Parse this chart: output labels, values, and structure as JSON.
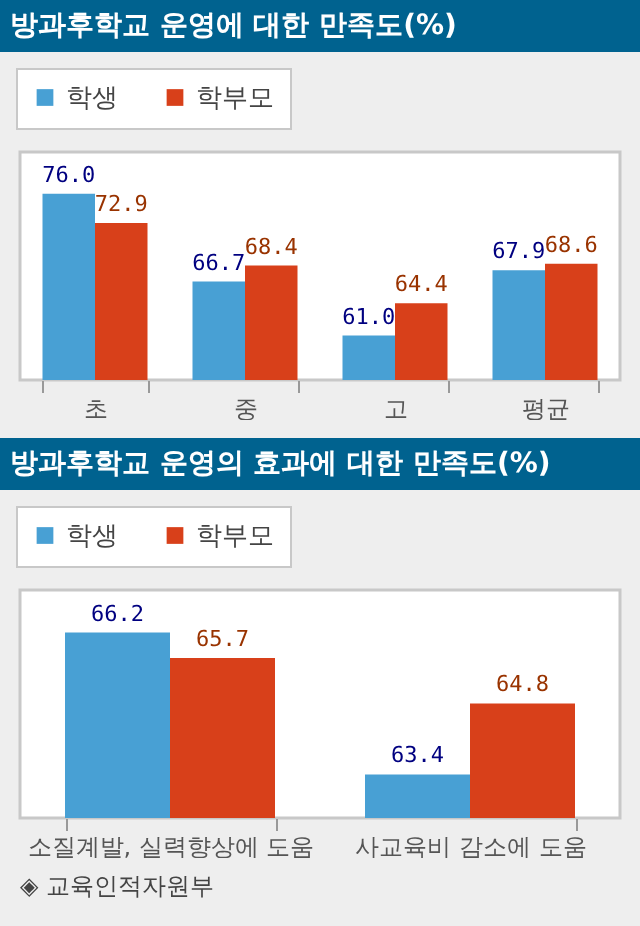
{
  "chart_data": [
    {
      "type": "bar",
      "title": "방과후학교 운영에 대한 만족도(%)",
      "categories": [
        "초",
        "중",
        "고",
        "평균"
      ],
      "series": [
        {
          "name": "학생",
          "color": "#48a0d4",
          "values": [
            76.0,
            66.7,
            61.0,
            67.9
          ],
          "value_labels": [
            "76.0",
            "66.7",
            "61.0",
            "67.9"
          ]
        },
        {
          "name": "학부모",
          "color": "#d8401a",
          "values": [
            72.9,
            68.4,
            64.4,
            68.6
          ],
          "value_labels": [
            "72.9",
            "68.4",
            "64.4",
            "68.6"
          ]
        }
      ],
      "ylim": [
        56.3,
        80.4
      ],
      "legend": "top left"
    },
    {
      "type": "bar",
      "title": "방과후학교 운영의 효과에 대한 만족도(%)",
      "categories": [
        "소질계발, 실력향상에 도움",
        "사교육비 감소에 도움"
      ],
      "series": [
        {
          "name": "학생",
          "color": "#48a0d4",
          "values": [
            66.2,
            63.4
          ],
          "value_labels": [
            "66.2",
            "63.4"
          ]
        },
        {
          "name": "학부모",
          "color": "#d8401a",
          "values": [
            65.7,
            64.8
          ],
          "value_labels": [
            "65.7",
            "64.8"
          ]
        }
      ],
      "ylim": [
        62.54,
        67.04
      ],
      "legend": "top left",
      "annotations": [
        "◈ 교육인적자원부"
      ]
    }
  ]
}
